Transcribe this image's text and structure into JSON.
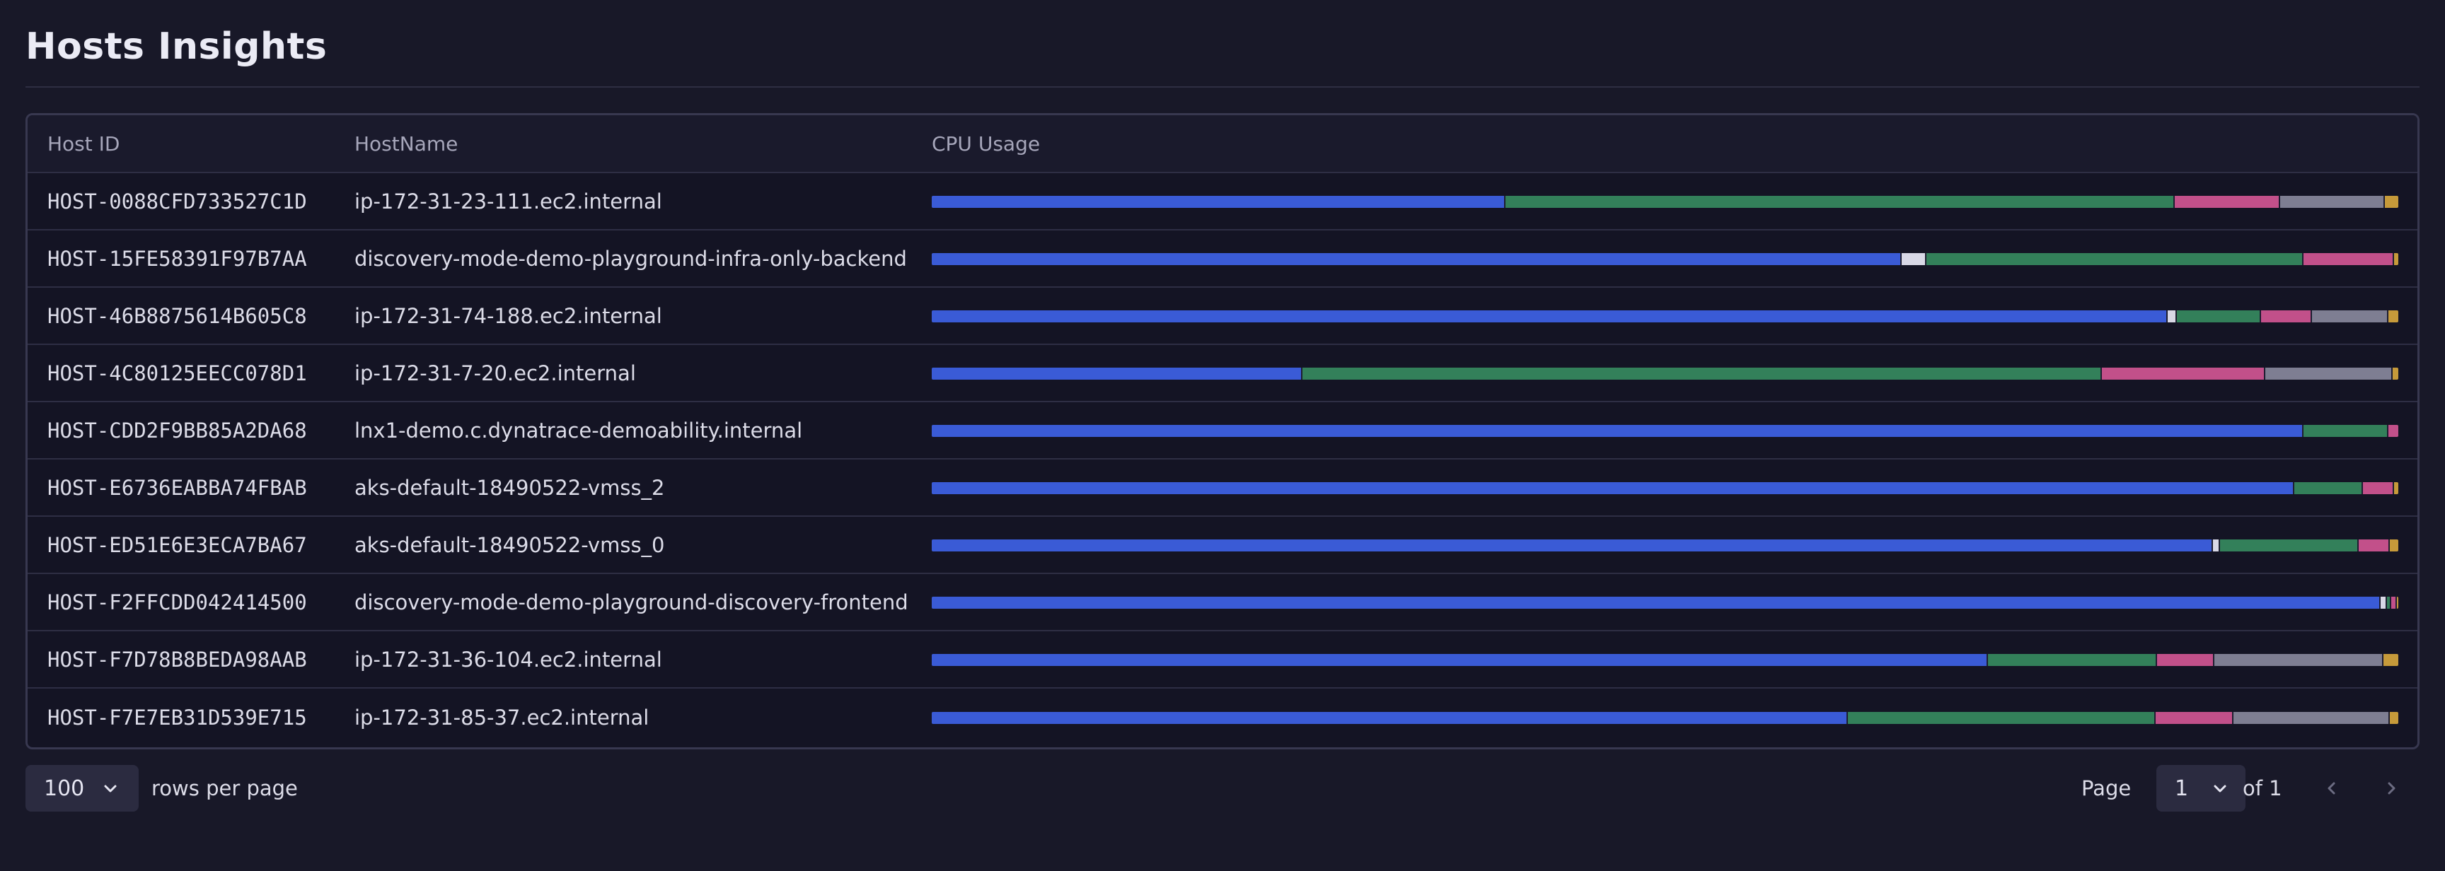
{
  "title": "Hosts Insights",
  "columns": {
    "host_id": "Host ID",
    "hostname": "HostName",
    "cpu": "CPU Usage"
  },
  "cpu_colors": [
    "#3a5bd6",
    "#d8d8e6",
    "#33805a",
    "#c2508a",
    "#7e7e92",
    "#c69a3a"
  ],
  "rows": [
    {
      "host_id": "HOST-0088CFD733527C1D",
      "hostname": "ip-172-31-23-111.ec2.internal",
      "cpu": [
        39.2,
        0,
        45.7,
        7.1,
        7.1,
        0.9
      ]
    },
    {
      "host_id": "HOST-15FE58391F97B7AA",
      "hostname": "discovery-mode-demo-playground-infra-only-backend",
      "cpu": [
        66.3,
        1.6,
        25.7,
        6.1,
        0,
        0.3
      ]
    },
    {
      "host_id": "HOST-46B8875614B605C8",
      "hostname": "ip-172-31-74-188.ec2.internal",
      "cpu": [
        84.6,
        0.5,
        5.7,
        3.4,
        5.1,
        0.7
      ]
    },
    {
      "host_id": "HOST-4C80125EECC078D1",
      "hostname": "ip-172-31-7-20.ec2.internal",
      "cpu": [
        25.3,
        0,
        54.6,
        11.1,
        8.6,
        0.4
      ]
    },
    {
      "host_id": "HOST-CDD2F9BB85A2DA68",
      "hostname": "lnx1-demo.c.dynatrace-demoability.internal",
      "cpu": [
        93.6,
        0,
        5.7,
        0.7,
        0,
        0
      ]
    },
    {
      "host_id": "HOST-E6736EABBA74FBAB",
      "hostname": "aks-default-18490522-vmss_2",
      "cpu": [
        93.1,
        0,
        4.6,
        2.0,
        0,
        0.3
      ]
    },
    {
      "host_id": "HOST-ED51E6E3ECA7BA67",
      "hostname": "aks-default-18490522-vmss_0",
      "cpu": [
        87.6,
        0.4,
        9.4,
        2.0,
        0,
        0.6
      ]
    },
    {
      "host_id": "HOST-F2FFCDD042414500",
      "hostname": "discovery-mode-demo-playground-discovery-frontend",
      "cpu": [
        99.1,
        0.3,
        0.2,
        0.3,
        0,
        0.1
      ]
    },
    {
      "host_id": "HOST-F7D78B8BEDA98AAB",
      "hostname": "ip-172-31-36-104.ec2.internal",
      "cpu": [
        72.2,
        0,
        11.5,
        3.8,
        11.5,
        1.0
      ]
    },
    {
      "host_id": "HOST-F7E7EB31D539E715",
      "hostname": "ip-172-31-85-37.ec2.internal",
      "cpu": [
        62.6,
        0,
        21.0,
        5.2,
        10.6,
        0.6
      ]
    }
  ],
  "footer": {
    "rows_per_page_value": "100",
    "rows_per_page_label": "rows per page",
    "page_label": "Page",
    "page_value": "1",
    "of_label": "of 1"
  }
}
